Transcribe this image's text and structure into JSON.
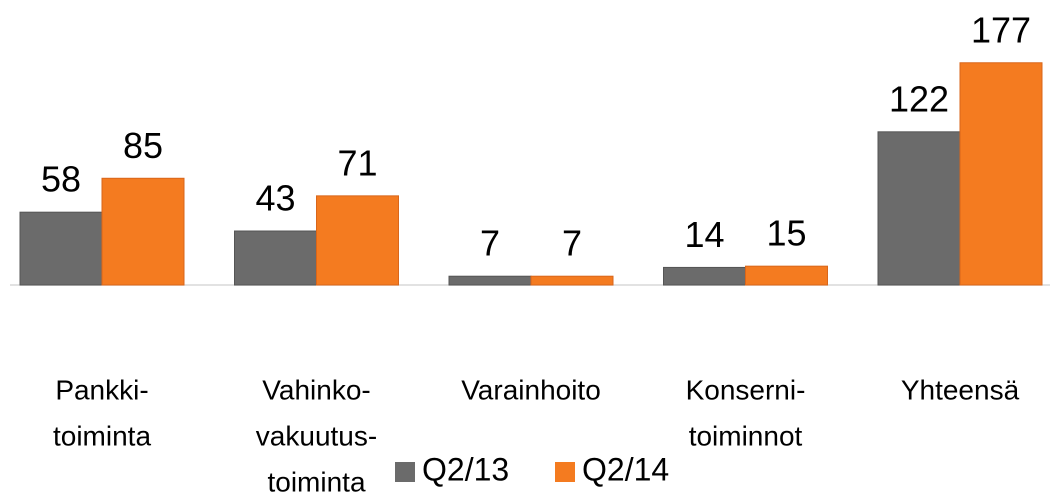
{
  "chart_data": {
    "type": "bar",
    "categories": [
      [
        "Pankki-",
        "toiminta"
      ],
      [
        "Vahinko-",
        "vakuutus-",
        "toiminta"
      ],
      [
        "Varainhoito"
      ],
      [
        "Konserni-",
        "toiminnot"
      ],
      [
        "Yhteensä"
      ]
    ],
    "series": [
      {
        "name": "Q2/13",
        "color": "#6b6b6b",
        "values": [
          58,
          43,
          7,
          14,
          122
        ]
      },
      {
        "name": "Q2/14",
        "color": "#f47b20",
        "values": [
          85,
          71,
          7,
          15,
          177
        ]
      }
    ],
    "ylim": [
      0,
      180
    ]
  }
}
